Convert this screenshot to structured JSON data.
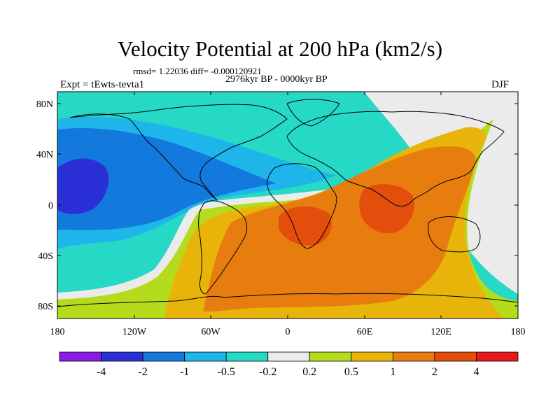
{
  "header": {
    "title": "Velocity Potential at 200 hPa (km2/s)",
    "stats": "rmsd= 1.22036 diff= -0.000120921",
    "period": "2976kyr BP - 0000kyr BP",
    "experiment": "Expt = tEwts-tevta1",
    "season": "DJF"
  },
  "axes": {
    "lat_ticks": [
      "80N",
      "40N",
      "0",
      "40S",
      "80S"
    ],
    "lon_ticks": [
      "180",
      "120W",
      "60W",
      "0",
      "60E",
      "120E",
      "180"
    ]
  },
  "colorbar": {
    "labels": [
      "-4",
      "-2",
      "-1",
      "-0.5",
      "-0.2",
      "0.2",
      "0.5",
      "1",
      "2",
      "4"
    ],
    "colors": [
      "#8a1ce6",
      "#2b2fd6",
      "#1479dd",
      "#1eb6ea",
      "#26d9c6",
      "#ebebeb",
      "#b4dc1c",
      "#e8b40a",
      "#e87d0f",
      "#e44e0c",
      "#e81818"
    ]
  },
  "colors": {
    "ocean_bg": "#26d9c6"
  }
}
